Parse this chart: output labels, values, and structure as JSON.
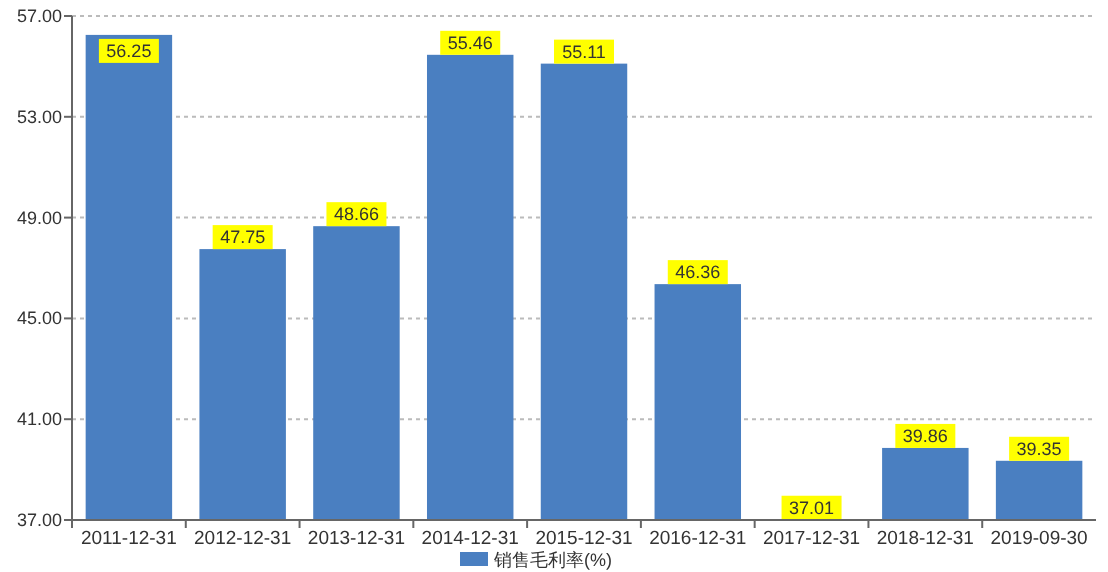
{
  "chart_data": {
    "type": "bar",
    "categories": [
      "2011-12-31",
      "2012-12-31",
      "2013-12-31",
      "2014-12-31",
      "2015-12-31",
      "2016-12-31",
      "2017-12-31",
      "2018-12-31",
      "2019-09-30"
    ],
    "series": [
      {
        "name": "销售毛利率(%)",
        "color": "#4a7fc1",
        "values": [
          56.25,
          47.75,
          48.66,
          55.46,
          55.11,
          46.36,
          37.01,
          39.86,
          39.35
        ]
      }
    ],
    "ylim": [
      37,
      57
    ],
    "yticks": [
      {
        "value": 37,
        "label": "37.00"
      },
      {
        "value": 41,
        "label": "41.00"
      },
      {
        "value": 45,
        "label": "45.00"
      },
      {
        "value": 49,
        "label": "49.00"
      },
      {
        "value": 53,
        "label": "53.00"
      },
      {
        "value": 57,
        "label": "57.00"
      }
    ],
    "grid": "y",
    "legend": "bottom",
    "data_labels": true
  }
}
